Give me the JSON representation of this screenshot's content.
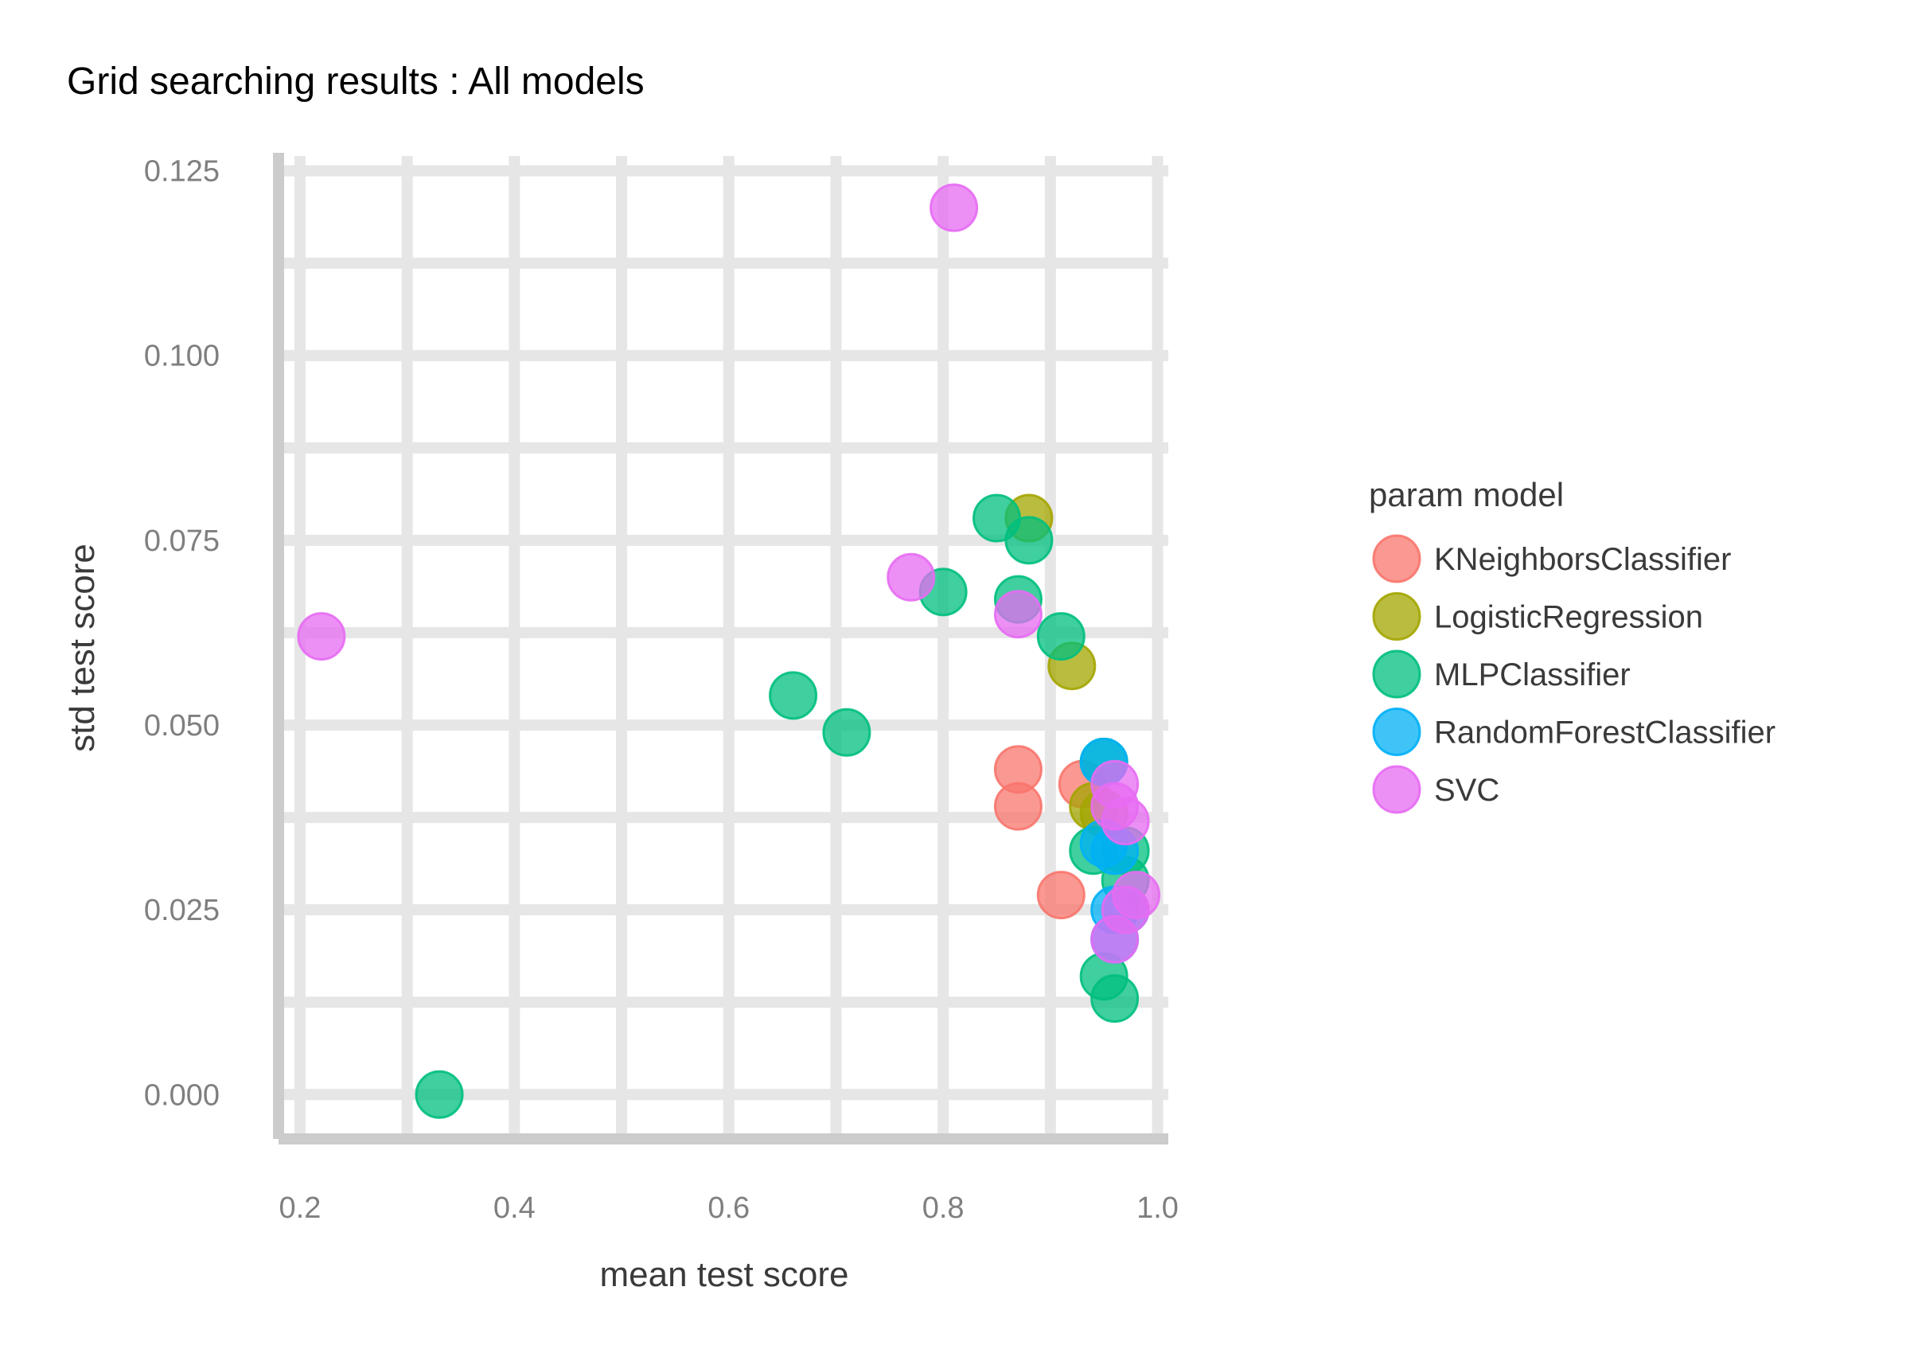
{
  "chart_data": {
    "type": "scatter",
    "title": "Grid searching results :  All models",
    "xlabel": "mean test score",
    "ylabel": "std test score",
    "xlim": [
      0.18,
      1.01
    ],
    "ylim": [
      -0.006,
      0.127
    ],
    "x_ticks": [
      "0.2",
      "0.4",
      "0.6",
      "0.8",
      "1.0"
    ],
    "x_tick_values": [
      0.2,
      0.4,
      0.6,
      0.8,
      1.0
    ],
    "y_ticks": [
      "0.000",
      "0.025",
      "0.050",
      "0.075",
      "0.100",
      "0.125"
    ],
    "y_tick_values": [
      0.0,
      0.025,
      0.05,
      0.075,
      0.1,
      0.125
    ],
    "grid": true,
    "legend": {
      "title": "param model",
      "placement": "right"
    },
    "series": [
      {
        "name": "KNeighborsClassifier",
        "color": "#F8766D",
        "points": [
          {
            "x": 0.87,
            "y": 0.044
          },
          {
            "x": 0.87,
            "y": 0.039
          },
          {
            "x": 0.91,
            "y": 0.027
          },
          {
            "x": 0.93,
            "y": 0.042
          }
        ]
      },
      {
        "name": "LogisticRegression",
        "color": "#A3A500",
        "points": [
          {
            "x": 0.88,
            "y": 0.078
          },
          {
            "x": 0.92,
            "y": 0.058
          },
          {
            "x": 0.94,
            "y": 0.039
          },
          {
            "x": 0.95,
            "y": 0.038
          }
        ]
      },
      {
        "name": "MLPClassifier",
        "color": "#00BF7D",
        "points": [
          {
            "x": 0.33,
            "y": 0.0
          },
          {
            "x": 0.66,
            "y": 0.054
          },
          {
            "x": 0.71,
            "y": 0.049
          },
          {
            "x": 0.8,
            "y": 0.068
          },
          {
            "x": 0.85,
            "y": 0.078
          },
          {
            "x": 0.88,
            "y": 0.075
          },
          {
            "x": 0.87,
            "y": 0.067
          },
          {
            "x": 0.91,
            "y": 0.062
          },
          {
            "x": 0.94,
            "y": 0.033
          },
          {
            "x": 0.95,
            "y": 0.016
          },
          {
            "x": 0.96,
            "y": 0.013
          },
          {
            "x": 0.97,
            "y": 0.033
          },
          {
            "x": 0.97,
            "y": 0.029
          },
          {
            "x": 0.95,
            "y": 0.045
          }
        ]
      },
      {
        "name": "RandomForestClassifier",
        "color": "#00B0F6",
        "points": [
          {
            "x": 0.95,
            "y": 0.045
          },
          {
            "x": 0.95,
            "y": 0.034
          },
          {
            "x": 0.96,
            "y": 0.033
          },
          {
            "x": 0.96,
            "y": 0.025
          },
          {
            "x": 0.97,
            "y": 0.025
          },
          {
            "x": 0.96,
            "y": 0.021
          }
        ]
      },
      {
        "name": "SVC",
        "color": "#E76BF3",
        "points": [
          {
            "x": 0.22,
            "y": 0.062
          },
          {
            "x": 0.77,
            "y": 0.07
          },
          {
            "x": 0.81,
            "y": 0.12
          },
          {
            "x": 0.87,
            "y": 0.065
          },
          {
            "x": 0.96,
            "y": 0.042
          },
          {
            "x": 0.96,
            "y": 0.039
          },
          {
            "x": 0.97,
            "y": 0.037
          },
          {
            "x": 0.98,
            "y": 0.027
          },
          {
            "x": 0.97,
            "y": 0.025
          },
          {
            "x": 0.96,
            "y": 0.021
          }
        ]
      }
    ]
  }
}
